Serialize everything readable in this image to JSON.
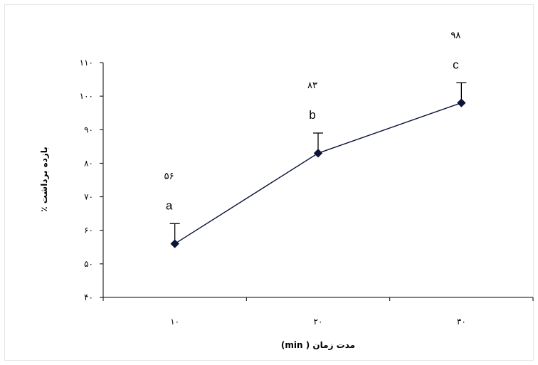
{
  "chart_data": {
    "type": "line",
    "xlabel": "مدت زمان ( min)",
    "ylabel": "بازده برداشت ٪",
    "ylim": [
      40,
      110
    ],
    "grid": false,
    "legend": "none",
    "x": [
      "۱۰",
      "۲۰",
      "۳۰"
    ],
    "y_ticks": [
      {
        "value": 40,
        "label": "۴۰"
      },
      {
        "value": 50,
        "label": "۵۰"
      },
      {
        "value": 60,
        "label": "۶۰"
      },
      {
        "value": 70,
        "label": "۷۰"
      },
      {
        "value": 80,
        "label": "۸۰"
      },
      {
        "value": 90,
        "label": "۹۰"
      },
      {
        "value": 100,
        "label": "۱۰۰"
      },
      {
        "value": 110,
        "label": "۱۱۰"
      }
    ],
    "series": [
      {
        "values": [
          56,
          83,
          98
        ],
        "error_plus": [
          6,
          6,
          6
        ],
        "value_labels": [
          "۵۶",
          "۸۳",
          "۹۸"
        ],
        "group_letters": [
          "a",
          "b",
          "c"
        ]
      }
    ],
    "colors": {
      "line": "#0b1437",
      "marker": "#0b1437",
      "axis": "#000000",
      "frame": "#e6e6e6"
    }
  }
}
